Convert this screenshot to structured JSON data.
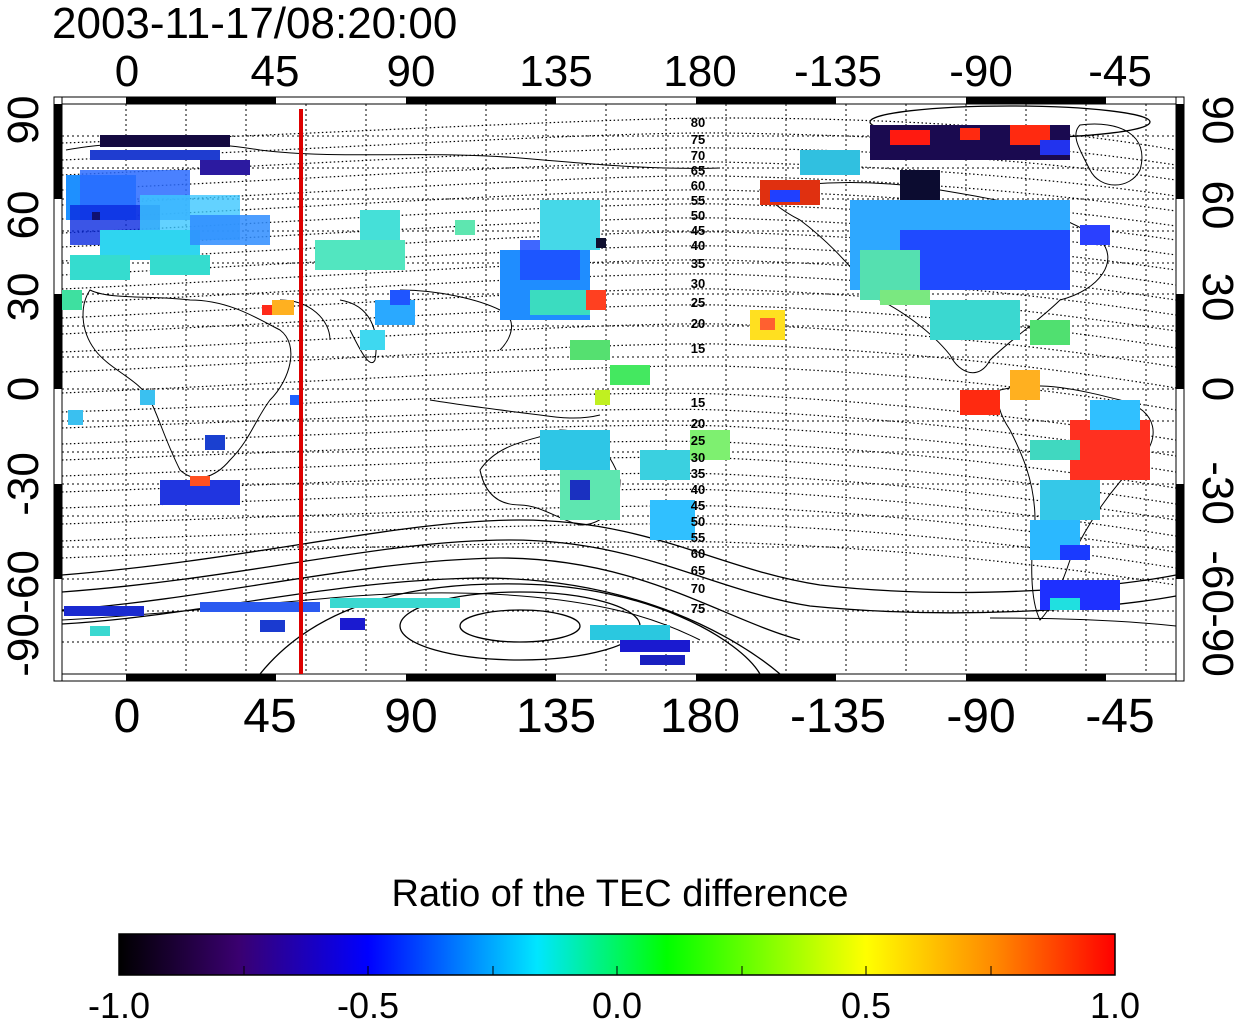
{
  "title": "2003-11-17/08:20:00",
  "map": {
    "top_lon_labels": [
      "0",
      "45",
      "90",
      "135",
      "180",
      "-135",
      "-90",
      "-45"
    ],
    "bottom_lon_labels": [
      "0",
      "45",
      "90",
      "135",
      "180",
      "-135",
      "-90",
      "-45"
    ],
    "left_lat_labels": [
      "90",
      "60",
      "30",
      "0",
      "-30",
      "-60",
      "-90"
    ],
    "right_lat_labels": [
      "90",
      "60",
      "30",
      "0",
      "-30",
      "-60",
      "-90"
    ],
    "contour_labels_north": [
      "80",
      "75",
      "70",
      "65",
      "60",
      "55",
      "50",
      "45",
      "40",
      "35",
      "30",
      "25",
      "20",
      "15"
    ],
    "contour_labels_south": [
      "15",
      "20",
      "25",
      "30",
      "35",
      "40",
      "45",
      "50",
      "55",
      "60",
      "65",
      "70",
      "75"
    ],
    "marker_line_longitude": 57,
    "marker_color": "#dd0000"
  },
  "colorbar": {
    "label": "Ratio of the TEC difference",
    "tick_labels": [
      "-1.0",
      "-0.5",
      "0.0",
      "0.5",
      "1.0"
    ],
    "range": [
      -1.0,
      1.0
    ],
    "colors": [
      "#000000",
      "#3a0070",
      "#0000ff",
      "#00e6ff",
      "#00ff00",
      "#ffff00",
      "#ff8800",
      "#ff0000"
    ]
  }
}
